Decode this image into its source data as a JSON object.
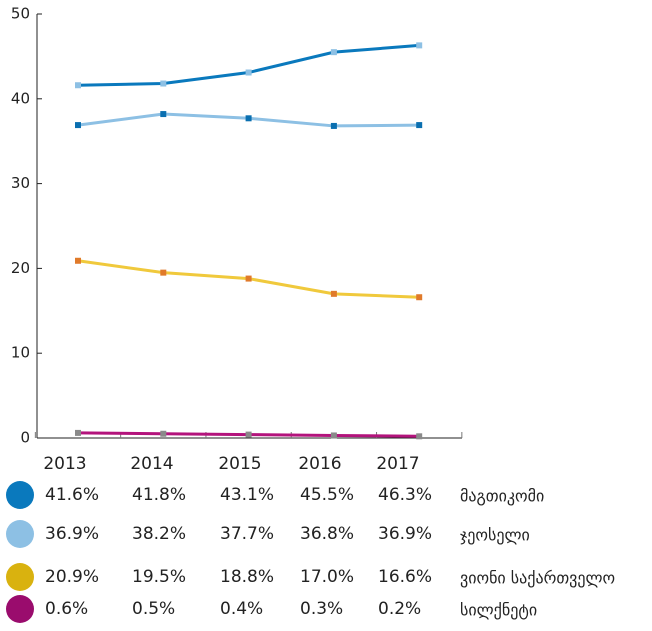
{
  "chart_data": {
    "type": "line",
    "categories": [
      "2013",
      "2014",
      "2015",
      "2016",
      "2017"
    ],
    "series": [
      {
        "name": "მაგთიკომი",
        "color": "#0a79bd",
        "marker_color": "#8dc0e4",
        "legend_color": "#0a79bd",
        "values": [
          41.6,
          41.8,
          43.1,
          45.5,
          46.3
        ],
        "value_labels": [
          "41.6%",
          "41.8%",
          "43.1%",
          "45.5%",
          "46.3%"
        ]
      },
      {
        "name": "ჯეოსელი",
        "color": "#8dc0e4",
        "marker_color": "#0a6fb0",
        "legend_color": "#8dc0e4",
        "values": [
          36.9,
          38.2,
          37.7,
          36.8,
          36.9
        ],
        "value_labels": [
          "36.9%",
          "38.2%",
          "37.7%",
          "36.8%",
          "36.9%"
        ]
      },
      {
        "name": "ვიონი საქართველო",
        "color": "#f0c93c",
        "marker_color": "#e07a2a",
        "legend_color": "#d9b20f",
        "values": [
          20.9,
          19.5,
          18.8,
          17.0,
          16.6
        ],
        "value_labels": [
          "20.9%",
          "19.5%",
          "18.8%",
          "17.0%",
          "16.6%"
        ]
      },
      {
        "name": "სილქნეტი",
        "color": "#b3137c",
        "marker_color": "#8a8a8a",
        "legend_color": "#9a0c6d",
        "values": [
          0.6,
          0.5,
          0.4,
          0.3,
          0.2
        ],
        "value_labels": [
          "0.6%",
          "0.5%",
          "0.4%",
          "0.3%",
          "0.2%"
        ]
      }
    ],
    "ylim": [
      0,
      50
    ],
    "yticks": [
      0,
      10,
      20,
      30,
      40,
      50
    ]
  }
}
